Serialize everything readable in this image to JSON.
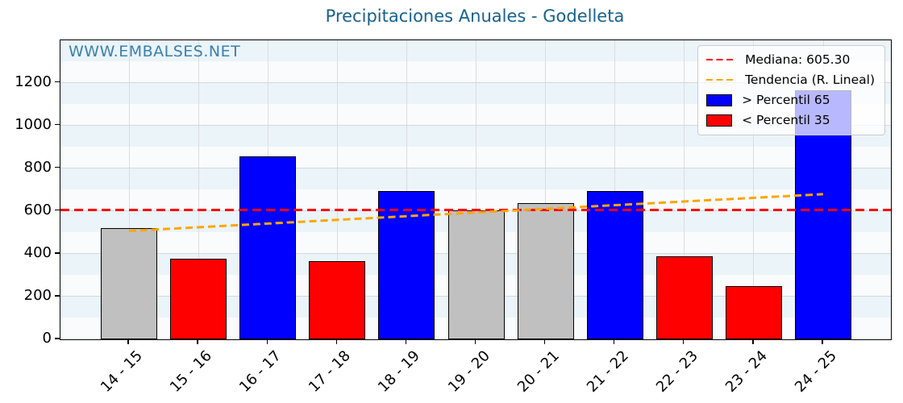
{
  "title": "Precipitaciones Anuales - Godelleta",
  "watermark": "WWW.EMBALSES.NET",
  "colors": {
    "title": "#17618e",
    "watermark": "#3b80ad",
    "bar_blue": "#0000ff",
    "bar_red": "#ff0000",
    "bar_gray": "#c0c0c0",
    "bar_edge": "#000000",
    "median_line": "#ff0000",
    "trend_line": "#ffa500",
    "stripe_blue": "#ebf4f9",
    "stripe_white": "#fafbfc",
    "grid_h": "#d3d8db",
    "grid_v": "#dadde0",
    "axis": "#000000"
  },
  "chart_data": {
    "type": "bar",
    "title": "Precipitaciones Anuales - Godelleta",
    "xlabel": "",
    "ylabel": "",
    "categories": [
      "14 - 15",
      "15 - 16",
      "16 - 17",
      "17 - 18",
      "18 - 19",
      "19 - 20",
      "20 - 21",
      "21 - 22",
      "22 - 23",
      "23 - 24",
      "24 - 25"
    ],
    "values": [
      520,
      377,
      855,
      367,
      693,
      602,
      638,
      693,
      387,
      249,
      1165
    ],
    "bar_color_keys": [
      "gray",
      "red",
      "blue",
      "red",
      "blue",
      "gray",
      "gray",
      "blue",
      "red",
      "red",
      "blue"
    ],
    "median": 605.3,
    "trend": {
      "start_value": 509,
      "end_value": 681
    },
    "ylim": [
      0,
      1398
    ],
    "yticks": [
      0,
      200,
      400,
      600,
      800,
      1000,
      1200
    ],
    "grid": true,
    "legend_position": "upper right",
    "legend": [
      {
        "type": "line",
        "color_key": "median_line",
        "label": "Mediana: 605.30"
      },
      {
        "type": "line",
        "color_key": "trend_line",
        "label": "Tendencia (R. Lineal)"
      },
      {
        "type": "patch",
        "color_key": "bar_blue",
        "label": "> Percentil 65"
      },
      {
        "type": "patch",
        "color_key": "bar_red",
        "label": "< Percentil 35"
      }
    ]
  }
}
